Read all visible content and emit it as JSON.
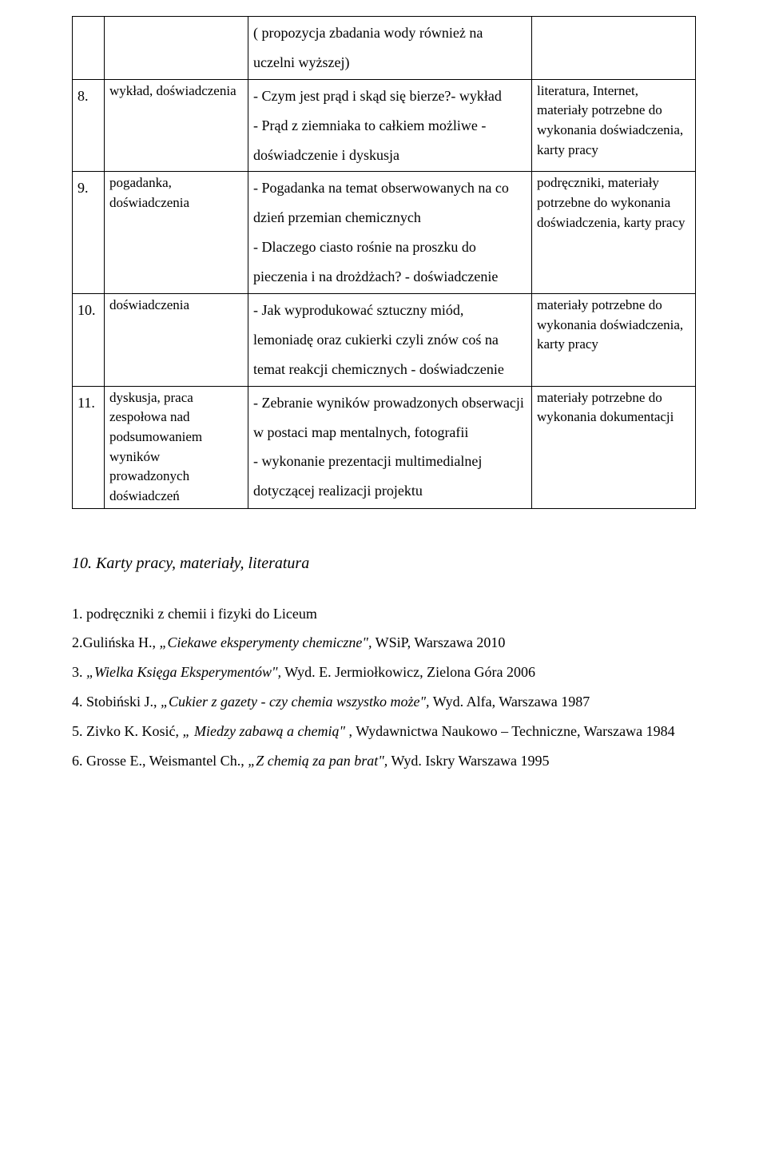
{
  "table": {
    "rows": [
      {
        "num": "",
        "col2": "",
        "col3": "( propozycja zbadania wody również na uczelni wyższej)",
        "col4": ""
      },
      {
        "num": "8.",
        "col2": "wykład, doświadczenia",
        "col3": "- Czym jest prąd i skąd się bierze?- wykład\n- Prąd z ziemniaka to całkiem możliwe -doświadczenie i dyskusja",
        "col4": "literatura, Internet, materiały potrzebne do wykonania doświadczenia, karty pracy"
      },
      {
        "num": "9.",
        "col2": "pogadanka, doświadczenia",
        "col3": "- Pogadanka na temat obserwowanych na co dzień przemian chemicznych\n- Dlaczego ciasto rośnie na proszku do pieczenia i na drożdżach? - doświadczenie",
        "col4": "podręczniki, materiały potrzebne do wykonania doświadczenia, karty pracy"
      },
      {
        "num": "10.",
        "col2": "doświadczenia",
        "col3": "- Jak wyprodukować sztuczny miód, lemoniadę oraz cukierki czyli znów coś na temat reakcji chemicznych - doświadczenie",
        "col4": "materiały potrzebne do wykonania doświadczenia, karty pracy"
      },
      {
        "num": "11.",
        "col2": "dyskusja, praca zespołowa nad podsumowaniem wyników prowadzonych doświadczeń",
        "col3": "- Zebranie wyników prowadzonych obserwacji w postaci map mentalnych, fotografii\n- wykonanie prezentacji multimedialnej dotyczącej realizacji projektu",
        "col4": "materiały potrzebne do wykonania dokumentacji"
      }
    ]
  },
  "section_heading": "10. Karty pracy, materiały, literatura",
  "biblio": {
    "b1": "1. podręczniki z chemii i fizyki do Liceum",
    "b2_pre": "2.Gulińska H., ",
    "b2_it": "„Ciekawe eksperymenty chemiczne\",",
    "b2_post": " WSiP, Warszawa 2010",
    "b3_pre": "3. ",
    "b3_it": "„Wielka Księga Eksperymentów\",",
    "b3_post": " Wyd. E. Jermiołkowicz, Zielona Góra 2006",
    "b4_pre": "4. Stobiński J., ",
    "b4_it": "„Cukier z gazety - czy chemia wszystko może\",",
    "b4_post": " Wyd. Alfa, Warszawa 1987",
    "b5_pre": "5. Zivko K. Kosić, ",
    "b5_it": "„ Miedzy zabawą a chemią\"",
    "b5_post": " , Wydawnictwa Naukowo – Techniczne, Warszawa 1984",
    "b6_pre": "6. Grosse E., Weismantel Ch., ",
    "b6_it": "„Z chemią za pan brat\",",
    "b6_post": " Wyd. Iskry Warszawa 1995"
  }
}
